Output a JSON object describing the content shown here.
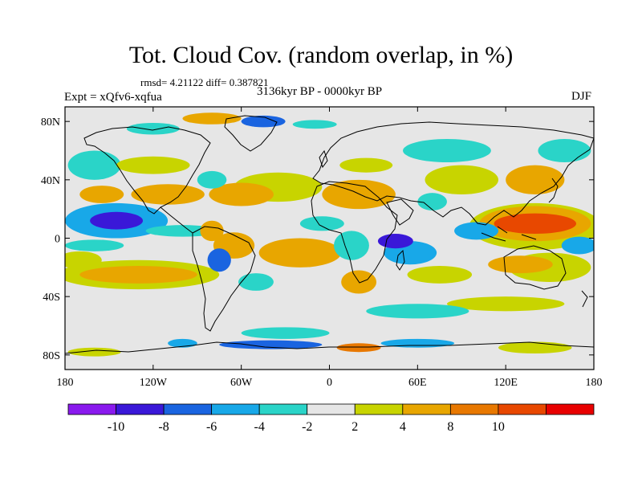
{
  "title": "Tot. Cloud Cov. (random overlap, in %)",
  "stats": "rmsd= 4.21122 diff= 0.387821",
  "left_label": "Expt = xQfv6-xqfua",
  "center_label": "3136kyr BP - 0000kyr BP",
  "right_label": "DJF",
  "map": {
    "lon_range": [
      -180,
      180
    ],
    "lat_range": [
      -90,
      90
    ],
    "background": "#e6e6e6",
    "lon_ticks": [
      {
        "value": -180,
        "label": "180"
      },
      {
        "value": -120,
        "label": "120W"
      },
      {
        "value": -60,
        "label": "60W"
      },
      {
        "value": 0,
        "label": "0"
      },
      {
        "value": 60,
        "label": "60E"
      },
      {
        "value": 120,
        "label": "120E"
      },
      {
        "value": 180,
        "label": "180"
      }
    ],
    "lat_ticks": [
      {
        "value": 80,
        "label": "80N"
      },
      {
        "value": 40,
        "label": "40N"
      },
      {
        "value": 0,
        "label": "0"
      },
      {
        "value": -40,
        "label": "40S"
      },
      {
        "value": -80,
        "label": "80S"
      }
    ],
    "anomalies": [
      {
        "lon": -145,
        "lat": 12,
        "rx": 18,
        "ry": 6,
        "value": -9
      },
      {
        "lon": -145,
        "lat": 12,
        "rx": 35,
        "ry": 12,
        "value": -5
      },
      {
        "lon": -160,
        "lat": -5,
        "rx": 20,
        "ry": 4,
        "value": -4
      },
      {
        "lon": -130,
        "lat": -25,
        "rx": 40,
        "ry": 6,
        "value": 5
      },
      {
        "lon": -130,
        "lat": -25,
        "rx": 55,
        "ry": 10,
        "value": 3
      },
      {
        "lon": -170,
        "lat": -15,
        "rx": 15,
        "ry": 6,
        "value": 3
      },
      {
        "lon": -110,
        "lat": 30,
        "rx": 25,
        "ry": 7,
        "value": 6
      },
      {
        "lon": -155,
        "lat": 30,
        "rx": 15,
        "ry": 6,
        "value": 5
      },
      {
        "lon": -60,
        "lat": 30,
        "rx": 22,
        "ry": 8,
        "value": 6
      },
      {
        "lon": -35,
        "lat": 35,
        "rx": 30,
        "ry": 10,
        "value": 3
      },
      {
        "lon": -120,
        "lat": 50,
        "rx": 25,
        "ry": 6,
        "value": 3
      },
      {
        "lon": -160,
        "lat": 50,
        "rx": 18,
        "ry": 10,
        "value": -3
      },
      {
        "lon": -80,
        "lat": 40,
        "rx": 10,
        "ry": 6,
        "value": -3
      },
      {
        "lon": -80,
        "lat": 5,
        "rx": 8,
        "ry": 7,
        "value": 5
      },
      {
        "lon": -75,
        "lat": -15,
        "rx": 8,
        "ry": 8,
        "value": -7
      },
      {
        "lon": -65,
        "lat": -5,
        "rx": 14,
        "ry": 9,
        "value": 4
      },
      {
        "lon": -50,
        "lat": -30,
        "rx": 12,
        "ry": 6,
        "value": -3
      },
      {
        "lon": -20,
        "lat": -10,
        "rx": 18,
        "ry": 6,
        "value": 7
      },
      {
        "lon": -20,
        "lat": -10,
        "rx": 28,
        "ry": 10,
        "value": 4
      },
      {
        "lon": -5,
        "lat": 10,
        "rx": 15,
        "ry": 5,
        "value": -3
      },
      {
        "lon": -100,
        "lat": 5,
        "rx": 25,
        "ry": 4,
        "value": -3
      },
      {
        "lon": 20,
        "lat": 30,
        "rx": 25,
        "ry": 10,
        "value": 5
      },
      {
        "lon": 25,
        "lat": 50,
        "rx": 18,
        "ry": 5,
        "value": 3
      },
      {
        "lon": 20,
        "lat": -30,
        "rx": 12,
        "ry": 8,
        "value": 6
      },
      {
        "lon": 45,
        "lat": -2,
        "rx": 12,
        "ry": 5,
        "value": -9
      },
      {
        "lon": 55,
        "lat": -10,
        "rx": 18,
        "ry": 8,
        "value": -5
      },
      {
        "lon": 15,
        "lat": -5,
        "rx": 12,
        "ry": 10,
        "value": -4
      },
      {
        "lon": 75,
        "lat": -25,
        "rx": 22,
        "ry": 6,
        "value": 3
      },
      {
        "lon": 60,
        "lat": -50,
        "rx": 35,
        "ry": 5,
        "value": -4
      },
      {
        "lon": 90,
        "lat": 40,
        "rx": 25,
        "ry": 10,
        "value": 3
      },
      {
        "lon": 80,
        "lat": 60,
        "rx": 30,
        "ry": 8,
        "value": -4
      },
      {
        "lon": 70,
        "lat": 25,
        "rx": 10,
        "ry": 6,
        "value": -3
      },
      {
        "lon": 100,
        "lat": 5,
        "rx": 15,
        "ry": 6,
        "value": -6
      },
      {
        "lon": 140,
        "lat": 10,
        "rx": 28,
        "ry": 7,
        "value": 11
      },
      {
        "lon": 140,
        "lat": 10,
        "rx": 38,
        "ry": 12,
        "value": 7
      },
      {
        "lon": 140,
        "lat": 8,
        "rx": 45,
        "ry": 16,
        "value": 3
      },
      {
        "lon": 130,
        "lat": -18,
        "rx": 22,
        "ry": 6,
        "value": 6
      },
      {
        "lon": 150,
        "lat": -20,
        "rx": 28,
        "ry": 10,
        "value": 3
      },
      {
        "lon": 170,
        "lat": -5,
        "rx": 12,
        "ry": 6,
        "value": -5
      },
      {
        "lon": 140,
        "lat": 40,
        "rx": 20,
        "ry": 10,
        "value": 4
      },
      {
        "lon": 160,
        "lat": 60,
        "rx": 18,
        "ry": 8,
        "value": -3
      },
      {
        "lon": 120,
        "lat": -45,
        "rx": 40,
        "ry": 5,
        "value": 3
      },
      {
        "lon": -80,
        "lat": 82,
        "rx": 20,
        "ry": 4,
        "value": 7
      },
      {
        "lon": -45,
        "lat": 80,
        "rx": 15,
        "ry": 4,
        "value": -7
      },
      {
        "lon": -120,
        "lat": 75,
        "rx": 18,
        "ry": 4,
        "value": -4
      },
      {
        "lon": -10,
        "lat": 78,
        "rx": 15,
        "ry": 3,
        "value": -3
      },
      {
        "lon": -40,
        "lat": -73,
        "rx": 35,
        "ry": 3,
        "value": -8
      },
      {
        "lon": 20,
        "lat": -75,
        "rx": 15,
        "ry": 3,
        "value": 8
      },
      {
        "lon": -100,
        "lat": -72,
        "rx": 10,
        "ry": 3,
        "value": -6
      },
      {
        "lon": 60,
        "lat": -72,
        "rx": 25,
        "ry": 3,
        "value": -5
      },
      {
        "lon": 140,
        "lat": -75,
        "rx": 25,
        "ry": 4,
        "value": 3
      },
      {
        "lon": -160,
        "lat": -78,
        "rx": 18,
        "ry": 3,
        "value": 3
      },
      {
        "lon": -30,
        "lat": -65,
        "rx": 30,
        "ry": 4,
        "value": -3
      }
    ]
  },
  "colorbar": {
    "colors": [
      "#8a1aee",
      "#3a18d8",
      "#1a64e0",
      "#18a8e8",
      "#2ad4c8",
      "#e6e6e6",
      "#c8d400",
      "#e8a600",
      "#e87800",
      "#e84800",
      "#e80000"
    ],
    "labels": [
      "-10",
      "-8",
      "-6",
      "-4",
      "-2",
      "2",
      "4",
      "8",
      "10"
    ],
    "bounds": [
      -10,
      -8,
      -6,
      -4,
      -2,
      2,
      4,
      8,
      10
    ]
  }
}
